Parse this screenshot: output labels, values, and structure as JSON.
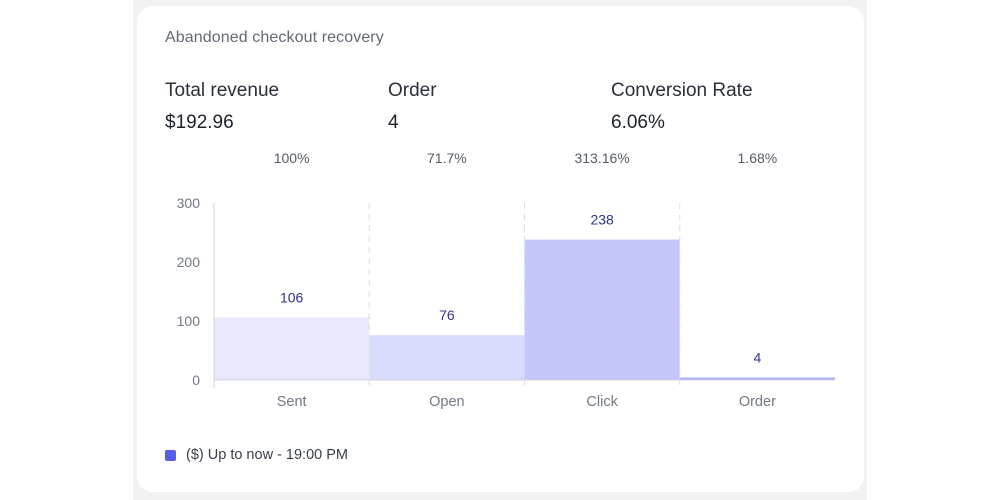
{
  "card": {
    "title": "Abandoned checkout recovery"
  },
  "metrics": [
    {
      "label": "Total revenue",
      "value": "$192.96"
    },
    {
      "label": "Order",
      "value": "4"
    },
    {
      "label": "Conversion Rate",
      "value": "6.06%"
    }
  ],
  "chart_data": {
    "type": "bar",
    "categories": [
      "Sent",
      "Open",
      "Click",
      "Order"
    ],
    "values": [
      106,
      76,
      238,
      4
    ],
    "value_labels": [
      "106",
      "76",
      "238",
      "4"
    ],
    "step_rates": [
      "100%",
      "71.7%",
      "313.16%",
      "1.68%"
    ],
    "ylim": [
      0,
      300
    ],
    "yticks": [
      0,
      100,
      200,
      300
    ],
    "bar_colors": [
      "#e7e8fc",
      "#d9dafc",
      "#c5c7fc",
      "#a6aaf7"
    ],
    "legend_placement": "bottom-left",
    "grid": false
  },
  "legend": {
    "label": "($) Up to now - 19:00 PM",
    "color": "#5b5fe6"
  },
  "colors": {
    "axis": "#d4d6db",
    "divider": "#dcdee2",
    "tick_text": "#727985",
    "value_text": "#2f338f",
    "rate_text": "#555c68"
  }
}
